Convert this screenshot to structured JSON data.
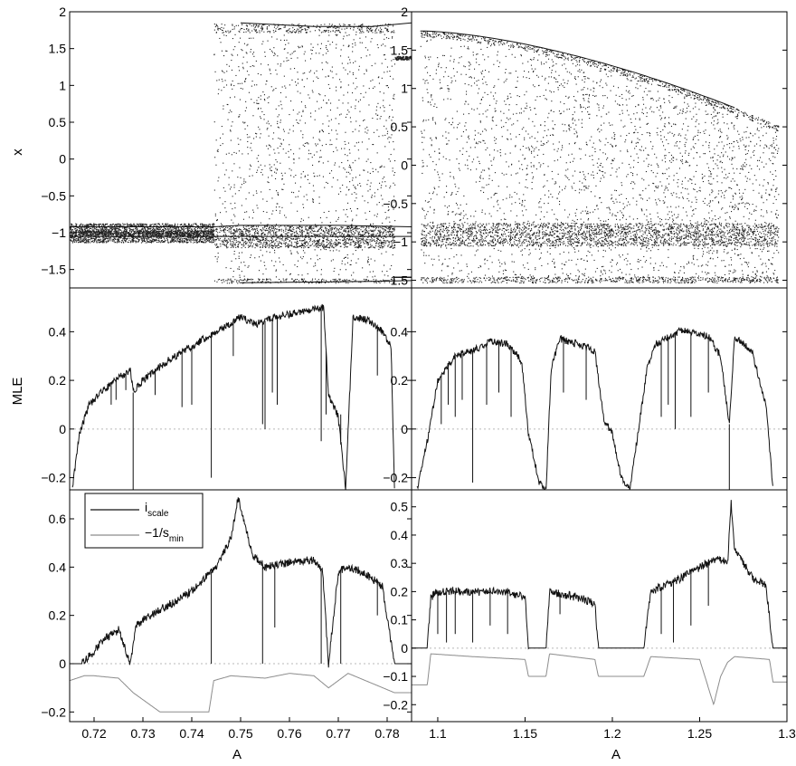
{
  "colors": {
    "black": "#111111",
    "grey": "#8c8c8c",
    "zero_line": "#b8b8b8",
    "dots": "#202020"
  },
  "labels": {
    "x_left": "A",
    "x_right": "A",
    "y_top": "x",
    "y_mid": "MLE"
  },
  "legend": {
    "items": [
      {
        "base": "i",
        "sub": "scale",
        "color": "#111111"
      },
      {
        "base": "−1/s",
        "sub": "min",
        "color": "#8c8c8c"
      }
    ]
  },
  "chart_data": [
    {
      "panel": "top-left",
      "type": "scatter",
      "title": "",
      "xlabel": "",
      "ylabel": "x",
      "xlim": [
        0.715,
        0.785
      ],
      "ylim": [
        -1.75,
        2
      ],
      "yticks": [
        2,
        1.5,
        1,
        0.5,
        0,
        -0.5,
        -1,
        -1.5
      ],
      "ytick_labels": [
        "2",
        "1.5",
        "1",
        "0.5",
        "0",
        "−0.5",
        "−1",
        "−1.5"
      ],
      "description_series": [
        {
          "name": "",
          "x": [
            0.715,
            0.7445,
            0.75,
            0.77,
            0.785
          ],
          "y": [
            -0.92,
            -0.92,
            -0.9,
            -0.9,
            -0.92
          ]
        },
        {
          "name": "",
          "x": [
            0.715,
            0.7445,
            0.75,
            0.77,
            0.785
          ],
          "y": [
            -1.05,
            -1.05,
            -1.05,
            -1.05,
            -1.05
          ]
        },
        {
          "name": "",
          "x": [
            0.75,
            0.765,
            0.777,
            0.785
          ],
          "y": [
            1.85,
            1.8,
            1.8,
            1.85
          ]
        },
        {
          "name": "",
          "x": [
            0.75,
            0.765,
            0.777,
            0.785
          ],
          "y": [
            -1.68,
            -1.67,
            -1.66,
            -1.65
          ]
        }
      ],
      "chaos_region": [
        0.7445,
        0.7815
      ]
    },
    {
      "panel": "top-right",
      "type": "scatter",
      "title": "",
      "xlabel": "",
      "ylabel": "",
      "xlim": [
        1.085,
        1.3
      ],
      "ylim": [
        -1.6,
        2
      ],
      "yticks": [
        2,
        1.5,
        1,
        0.5,
        0,
        -0.5,
        -1,
        -1.5
      ],
      "ytick_labels": [
        "2",
        "1.5",
        "1",
        "0.5",
        "0",
        "−0.5",
        "−1",
        "−1.5"
      ],
      "chaos_region": [
        1.09,
        1.29
      ],
      "periodic_windows": [
        [
          1.155,
          1.165
        ],
        [
          1.195,
          1.22
        ],
        [
          1.265,
          1.27
        ]
      ]
    },
    {
      "panel": "middle-left",
      "type": "line",
      "title": "",
      "xlabel": "",
      "ylabel": "MLE",
      "xlim": [
        0.715,
        0.785
      ],
      "ylim": [
        -0.25,
        0.58
      ],
      "yticks": [
        0.4,
        0.2,
        0,
        -0.2
      ],
      "ytick_labels": [
        "0.4",
        "0.2",
        "0",
        "−0.2"
      ],
      "x": [
        0.7155,
        0.717,
        0.719,
        0.722,
        0.725,
        0.7275,
        0.728,
        0.73,
        0.735,
        0.74,
        0.745,
        0.75,
        0.753,
        0.757,
        0.762,
        0.767,
        0.768,
        0.77,
        0.7715,
        0.773,
        0.776,
        0.779,
        0.7808,
        0.7815
      ],
      "y": [
        -0.25,
        -0.02,
        0.1,
        0.16,
        0.21,
        0.24,
        0.15,
        0.2,
        0.28,
        0.34,
        0.4,
        0.46,
        0.43,
        0.46,
        0.48,
        0.5,
        0.14,
        0.05,
        -0.25,
        0.46,
        0.45,
        0.4,
        0.34,
        -0.25
      ],
      "dips": [
        [
          0.7235,
          0.1
        ],
        [
          0.7245,
          0.12
        ],
        [
          0.7265,
          0.16
        ],
        [
          0.728,
          -0.25
        ],
        [
          0.7325,
          0.14
        ],
        [
          0.738,
          0.09
        ],
        [
          0.74,
          0.1
        ],
        [
          0.744,
          -0.2
        ],
        [
          0.7485,
          0.3
        ],
        [
          0.7545,
          0.02
        ],
        [
          0.755,
          0.0
        ],
        [
          0.7565,
          0.15
        ],
        [
          0.7575,
          0.1
        ],
        [
          0.7665,
          -0.05
        ],
        [
          0.7675,
          0.06
        ],
        [
          0.7705,
          0.06
        ],
        [
          0.778,
          0.22
        ]
      ]
    },
    {
      "panel": "middle-right",
      "type": "line",
      "title": "",
      "xlabel": "",
      "ylabel": "",
      "xlim": [
        1.085,
        1.3
      ],
      "ylim": [
        -0.25,
        0.58
      ],
      "yticks": [
        0.4,
        0.2,
        0,
        -0.2
      ],
      "ytick_labels": [
        "0.4",
        "0.2",
        "0",
        "−0.2"
      ],
      "x": [
        1.088,
        1.094,
        1.1,
        1.11,
        1.12,
        1.13,
        1.14,
        1.148,
        1.152,
        1.158,
        1.162,
        1.165,
        1.17,
        1.18,
        1.19,
        1.195,
        1.2,
        1.205,
        1.21,
        1.22,
        1.225,
        1.24,
        1.255,
        1.262,
        1.267,
        1.27,
        1.28,
        1.288,
        1.292
      ],
      "y": [
        -0.25,
        -0.05,
        0.2,
        0.3,
        0.32,
        0.36,
        0.35,
        0.28,
        -0.02,
        -0.22,
        -0.25,
        0.25,
        0.37,
        0.35,
        0.32,
        0.04,
        -0.02,
        -0.2,
        -0.25,
        0.25,
        0.35,
        0.41,
        0.38,
        0.3,
        0.02,
        0.38,
        0.32,
        0.1,
        -0.25
      ],
      "dips": [
        [
          1.102,
          0.02
        ],
        [
          1.106,
          0.1
        ],
        [
          1.11,
          0.05
        ],
        [
          1.114,
          0.12
        ],
        [
          1.12,
          -0.22
        ],
        [
          1.128,
          0.1
        ],
        [
          1.135,
          0.15
        ],
        [
          1.142,
          0.05
        ],
        [
          1.172,
          0.15
        ],
        [
          1.185,
          0.12
        ],
        [
          1.228,
          0.05
        ],
        [
          1.232,
          0.1
        ],
        [
          1.236,
          0.0
        ],
        [
          1.245,
          0.05
        ],
        [
          1.255,
          0.15
        ],
        [
          1.267,
          -0.25
        ]
      ]
    },
    {
      "panel": "bottom-left",
      "type": "line",
      "title": "",
      "xlabel": "A",
      "ylabel": "",
      "xlim": [
        0.715,
        0.785
      ],
      "ylim": [
        -0.24,
        0.72
      ],
      "yticks": [
        0.6,
        0.4,
        0.2,
        0,
        -0.2
      ],
      "ytick_labels": [
        "0.6",
        "0.4",
        "0.2",
        "0",
        "−0.2"
      ],
      "xticks": [
        0.72,
        0.73,
        0.74,
        0.75,
        0.76,
        0.77,
        0.78
      ],
      "xtick_labels": [
        "0.72",
        "0.73",
        "0.74",
        "0.75",
        "0.76",
        "0.77",
        "0.78"
      ],
      "series": [
        {
          "name": "i_scale",
          "x": [
            0.715,
            0.7175,
            0.72,
            0.722,
            0.725,
            0.7275,
            0.7285,
            0.73,
            0.735,
            0.74,
            0.745,
            0.748,
            0.7495,
            0.7505,
            0.7525,
            0.755,
            0.76,
            0.765,
            0.7668,
            0.768,
            0.77,
            0.772,
            0.775,
            0.779,
            0.7815,
            0.785
          ],
          "y": [
            0,
            0.0,
            0.05,
            0.1,
            0.14,
            0.0,
            0.16,
            0.18,
            0.24,
            0.3,
            0.4,
            0.52,
            0.69,
            0.6,
            0.45,
            0.4,
            0.42,
            0.43,
            0.38,
            0.0,
            0.38,
            0.4,
            0.38,
            0.32,
            0.0,
            0.0
          ],
          "dips": [
            [
              0.744,
              0.0
            ],
            [
              0.7545,
              0.0
            ],
            [
              0.757,
              0.15
            ],
            [
              0.7665,
              0.0
            ],
            [
              0.7705,
              0.0
            ],
            [
              0.778,
              0.2
            ]
          ]
        },
        {
          "name": "-1/s_min",
          "x": [
            0.715,
            0.718,
            0.72,
            0.725,
            0.728,
            0.7335,
            0.7435,
            0.7445,
            0.748,
            0.755,
            0.76,
            0.765,
            0.768,
            0.772,
            0.7815,
            0.785
          ],
          "y": [
            -0.07,
            -0.05,
            -0.05,
            -0.06,
            -0.12,
            -0.2,
            -0.2,
            -0.07,
            -0.05,
            -0.06,
            -0.04,
            -0.05,
            -0.1,
            -0.04,
            -0.12,
            -0.12
          ]
        }
      ]
    },
    {
      "panel": "bottom-right",
      "type": "line",
      "title": "",
      "xlabel": "A",
      "ylabel": "",
      "xlim": [
        1.085,
        1.3
      ],
      "ylim": [
        -0.26,
        0.56
      ],
      "yticks": [
        0.5,
        0.4,
        0.3,
        0.2,
        0.1,
        0,
        -0.1,
        -0.2
      ],
      "ytick_labels": [
        "0.5",
        "0.4",
        "0.3",
        "0.2",
        "0.1",
        "0",
        "−0.1",
        "−0.2"
      ],
      "xticks": [
        1.1,
        1.15,
        1.2,
        1.25,
        1.3
      ],
      "xtick_labels": [
        "1.1",
        "1.15",
        "1.2",
        "1.25",
        "1.3"
      ],
      "series": [
        {
          "name": "i_scale",
          "x": [
            1.085,
            1.094,
            1.096,
            1.1,
            1.12,
            1.14,
            1.15,
            1.152,
            1.162,
            1.164,
            1.18,
            1.19,
            1.192,
            1.218,
            1.222,
            1.24,
            1.26,
            1.266,
            1.268,
            1.27,
            1.28,
            1.288,
            1.292,
            1.3
          ],
          "y": [
            0,
            0,
            0.18,
            0.2,
            0.2,
            0.2,
            0.18,
            0,
            0,
            0.2,
            0.18,
            0.16,
            0,
            0,
            0.2,
            0.25,
            0.32,
            0.3,
            0.52,
            0.35,
            0.25,
            0.22,
            0,
            0
          ],
          "dips": [
            [
              1.1,
              0.05
            ],
            [
              1.105,
              0.02
            ],
            [
              1.11,
              0.05
            ],
            [
              1.12,
              0.02
            ],
            [
              1.13,
              0.08
            ],
            [
              1.14,
              0.05
            ],
            [
              1.17,
              0.12
            ],
            [
              1.228,
              0.05
            ],
            [
              1.235,
              0.02
            ],
            [
              1.245,
              0.08
            ],
            [
              1.255,
              0.15
            ]
          ]
        },
        {
          "name": "-1/s_min",
          "x": [
            1.085,
            1.094,
            1.096,
            1.12,
            1.15,
            1.152,
            1.162,
            1.164,
            1.19,
            1.192,
            1.218,
            1.222,
            1.25,
            1.258,
            1.262,
            1.266,
            1.27,
            1.29,
            1.292,
            1.3
          ],
          "y": [
            -0.13,
            -0.13,
            -0.02,
            -0.03,
            -0.04,
            -0.1,
            -0.1,
            -0.02,
            -0.04,
            -0.1,
            -0.1,
            -0.03,
            -0.04,
            -0.2,
            -0.1,
            -0.05,
            -0.03,
            -0.04,
            -0.12,
            -0.12
          ]
        }
      ]
    }
  ]
}
